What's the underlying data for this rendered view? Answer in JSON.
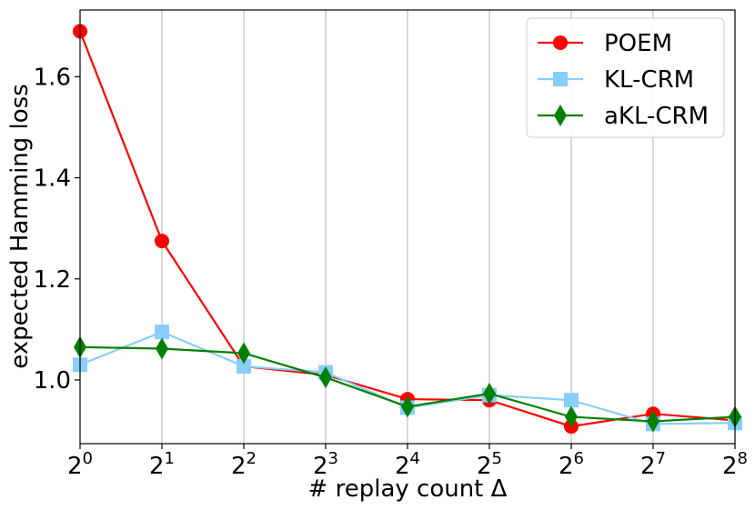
{
  "chart_data": {
    "type": "line",
    "xlabel": "# replay count Δ",
    "ylabel": "expected Hamming loss",
    "x": [
      0,
      1,
      2,
      3,
      4,
      5,
      6,
      7,
      8
    ],
    "x_scale": "log2",
    "xticks": [
      {
        "base": "2",
        "exp": "0"
      },
      {
        "base": "2",
        "exp": "1"
      },
      {
        "base": "2",
        "exp": "2"
      },
      {
        "base": "2",
        "exp": "3"
      },
      {
        "base": "2",
        "exp": "4"
      },
      {
        "base": "2",
        "exp": "5"
      },
      {
        "base": "2",
        "exp": "6"
      },
      {
        "base": "2",
        "exp": "7"
      },
      {
        "base": "2",
        "exp": "8"
      }
    ],
    "yticks": [
      "1.0",
      "1.2",
      "1.4",
      "1.6"
    ],
    "ylim": [
      0.874,
      1.732
    ],
    "grid": "vertical",
    "legend": "top-right",
    "series": [
      {
        "name": "POEM",
        "color": "#ff0000",
        "marker": "circle",
        "values": [
          1.69,
          1.275,
          1.027,
          1.01,
          0.962,
          0.96,
          0.908,
          0.933,
          0.92
        ]
      },
      {
        "name": "KL-CRM",
        "color": "#87cefa",
        "marker": "square",
        "values": [
          1.03,
          1.095,
          1.027,
          1.015,
          0.945,
          0.97,
          0.96,
          0.913,
          0.915
        ]
      },
      {
        "name": "aKL-CRM",
        "color": "#008000",
        "marker": "diamond",
        "values": [
          1.065,
          1.062,
          1.053,
          1.005,
          0.947,
          0.973,
          0.927,
          0.918,
          0.927
        ]
      }
    ]
  }
}
